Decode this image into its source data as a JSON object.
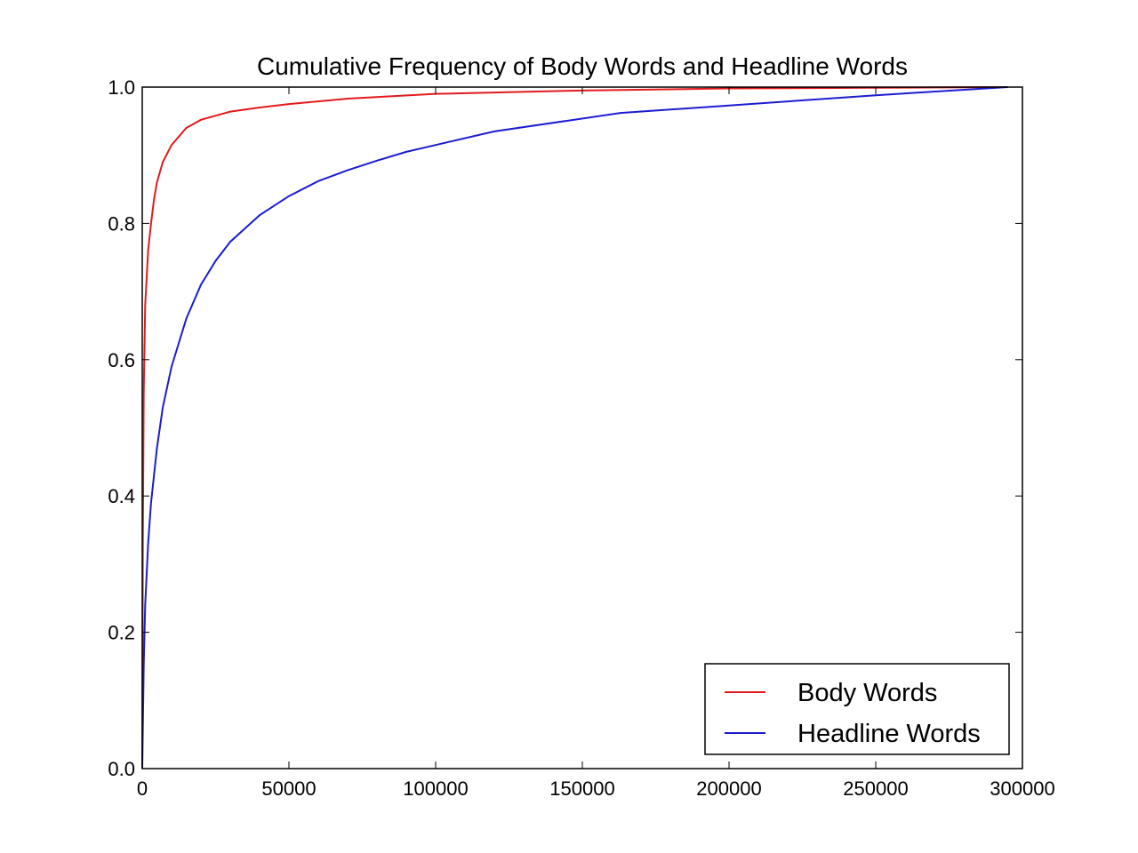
{
  "chart_data": {
    "type": "line",
    "title": "Cumulative Frequency of Body Words and Headline Words",
    "xlabel": "",
    "ylabel": "",
    "xlim": [
      0,
      300000
    ],
    "ylim": [
      0.0,
      1.0
    ],
    "x_ticks": [
      0,
      50000,
      100000,
      150000,
      200000,
      250000,
      300000
    ],
    "x_tick_labels": [
      "0",
      "50000",
      "100000",
      "150000",
      "200000",
      "250000",
      "300000"
    ],
    "y_ticks": [
      0.0,
      0.2,
      0.4,
      0.6,
      0.8,
      1.0
    ],
    "y_tick_labels": [
      "0.0",
      "0.2",
      "0.4",
      "0.6",
      "0.8",
      "1.0"
    ],
    "grid": false,
    "legend_position": "bottom-right",
    "series": [
      {
        "name": "Body Words",
        "color": "#e31a1c",
        "x": [
          0,
          200,
          500,
          1000,
          2000,
          3000,
          4000,
          5000,
          7000,
          10000,
          15000,
          20000,
          30000,
          40000,
          50000,
          70000,
          100000,
          150000,
          200000,
          250000,
          295000
        ],
        "y": [
          0.0,
          0.33,
          0.55,
          0.68,
          0.76,
          0.8,
          0.835,
          0.86,
          0.89,
          0.915,
          0.94,
          0.952,
          0.964,
          0.97,
          0.975,
          0.983,
          0.99,
          0.995,
          0.998,
          0.999,
          1.0
        ]
      },
      {
        "name": "Headline Words",
        "color": "#1c1cd0",
        "x": [
          0,
          500,
          1000,
          2000,
          3000,
          5000,
          7000,
          10000,
          15000,
          20000,
          25000,
          30000,
          40000,
          50000,
          60000,
          70000,
          80000,
          90000,
          100000,
          120000,
          163000,
          200000,
          250000,
          295000
        ],
        "y": [
          0.0,
          0.15,
          0.24,
          0.33,
          0.39,
          0.47,
          0.53,
          0.59,
          0.66,
          0.71,
          0.745,
          0.773,
          0.812,
          0.84,
          0.862,
          0.878,
          0.892,
          0.905,
          0.915,
          0.935,
          0.962,
          0.973,
          0.988,
          1.0
        ]
      }
    ]
  }
}
